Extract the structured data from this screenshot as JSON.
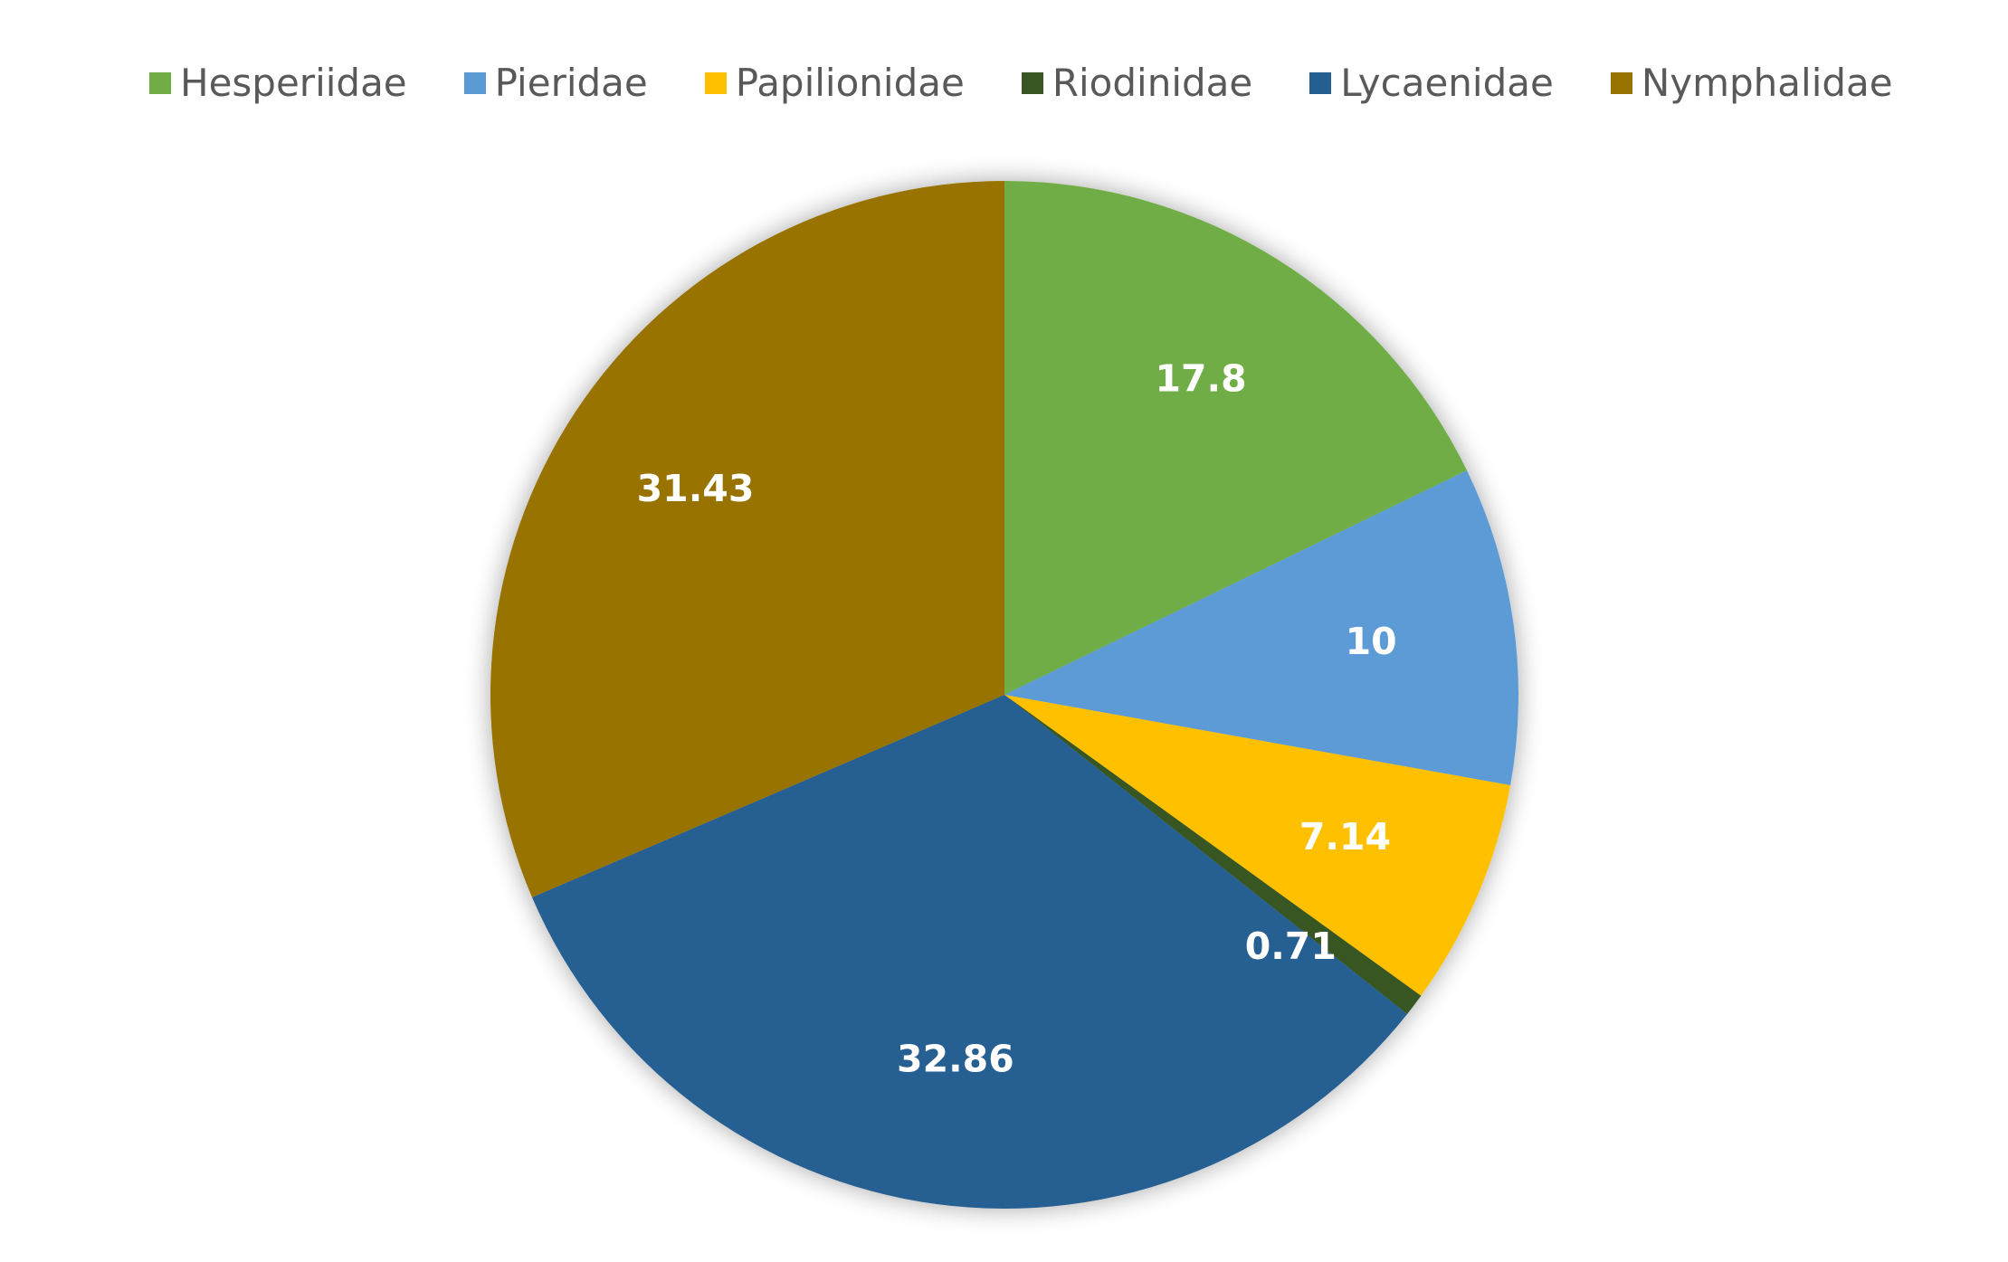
{
  "chart_data": {
    "type": "pie",
    "categories": [
      "Hesperiidae",
      "Pieridae",
      "Papilionidae",
      "Riodinidae",
      "Lycaenidae",
      "Nymphalidae"
    ],
    "values": [
      17.8,
      10,
      7.14,
      0.71,
      32.86,
      31.43
    ],
    "data_labels": [
      "17.8",
      "10",
      "7.14",
      "0.71",
      "32.86",
      "31.43"
    ],
    "colors": [
      "#70AD47",
      "#5B9BD5",
      "#FFC000",
      "#375623",
      "#255E91",
      "#997300"
    ],
    "legend": "top",
    "start_angle_deg": 0,
    "direction": "clockwise"
  }
}
